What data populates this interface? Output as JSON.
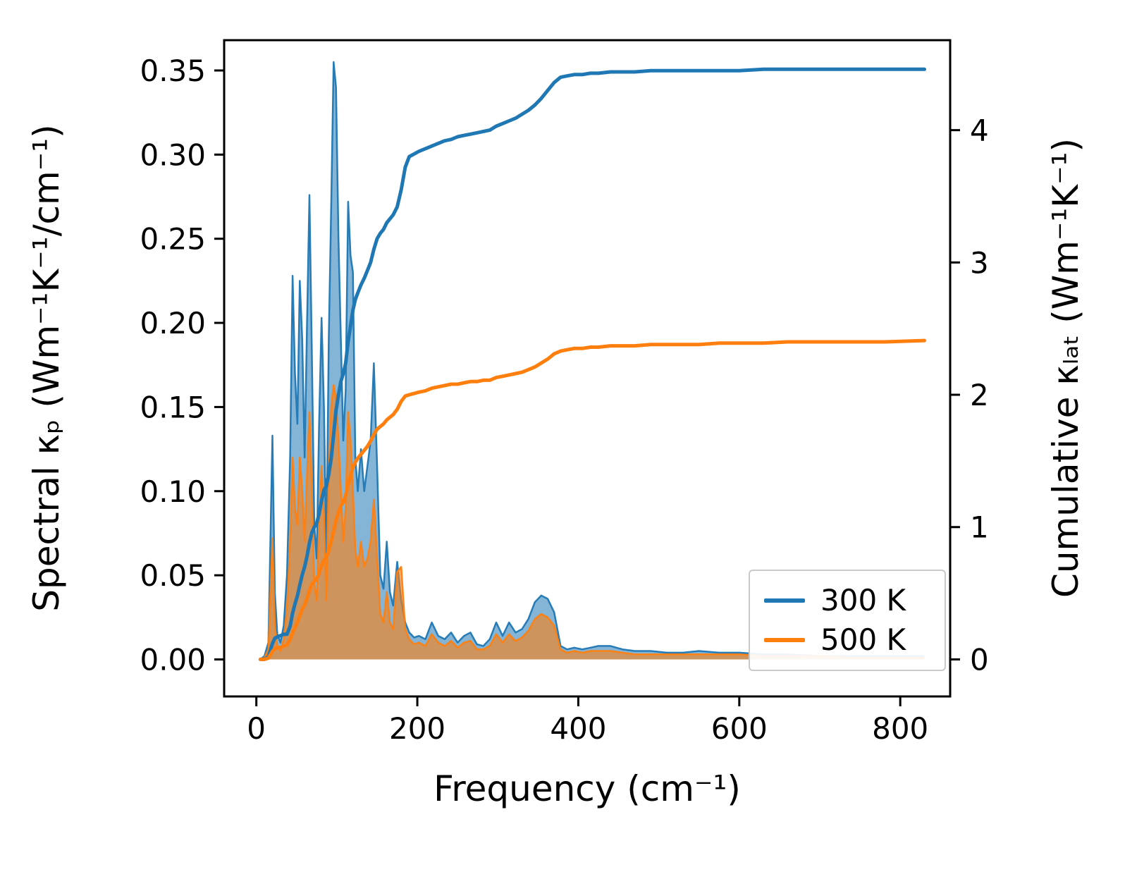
{
  "chart_data": {
    "type": "area+line",
    "title": "",
    "xlabel": "Frequency (cm⁻¹)",
    "ylabel_left": "Spectral κₚ (Wm⁻¹K⁻¹/cm⁻¹)",
    "ylabel_right": "Cumulative κₗₐₜ (Wm⁻¹K⁻¹)",
    "xlim": [
      -40,
      862
    ],
    "ylim_left": [
      -0.022,
      0.368
    ],
    "ylim_right": [
      -0.28,
      4.68
    ],
    "grid": false,
    "xticks": {
      "values": [
        0,
        200,
        400,
        600,
        800
      ],
      "labels": [
        "0",
        "200",
        "400",
        "600",
        "800"
      ]
    },
    "yticks_left": {
      "values": [
        0.0,
        0.05,
        0.1,
        0.15,
        0.2,
        0.25,
        0.3,
        0.35
      ],
      "labels": [
        "0.00",
        "0.05",
        "0.10",
        "0.15",
        "0.20",
        "0.25",
        "0.30",
        "0.35"
      ]
    },
    "yticks_right": {
      "values": [
        0,
        1,
        2,
        3,
        4
      ],
      "labels": [
        "0",
        "1",
        "2",
        "3",
        "4"
      ]
    },
    "x": [
      5,
      10,
      15,
      20,
      23,
      26,
      30,
      34,
      38,
      42,
      45,
      48,
      51,
      54,
      57,
      60,
      63,
      66,
      69,
      72,
      75,
      78,
      81,
      84,
      87,
      90,
      93,
      96,
      99,
      102,
      105,
      108,
      111,
      114,
      117,
      120,
      123,
      126,
      130,
      134,
      138,
      142,
      146,
      150,
      154,
      158,
      162,
      166,
      170,
      175,
      180,
      185,
      190,
      196,
      202,
      210,
      218,
      226,
      234,
      242,
      250,
      258,
      266,
      274,
      282,
      290,
      298,
      306,
      314,
      322,
      330,
      338,
      346,
      354,
      362,
      370,
      378,
      386,
      395,
      405,
      415,
      425,
      440,
      455,
      470,
      490,
      510,
      530,
      550,
      575,
      600,
      630,
      660,
      700,
      740,
      780,
      830
    ],
    "series": [
      {
        "name": "spectral-300K",
        "kind": "area",
        "axis": "left",
        "color": "#1f77b4",
        "fill_alpha": 0.55,
        "values": [
          0.0,
          0.002,
          0.01,
          0.133,
          0.04,
          0.015,
          0.01,
          0.02,
          0.05,
          0.12,
          0.228,
          0.17,
          0.14,
          0.225,
          0.19,
          0.12,
          0.2,
          0.276,
          0.18,
          0.08,
          0.06,
          0.14,
          0.203,
          0.15,
          0.06,
          0.19,
          0.27,
          0.355,
          0.34,
          0.25,
          0.19,
          0.13,
          0.16,
          0.272,
          0.24,
          0.23,
          0.12,
          0.1,
          0.125,
          0.1,
          0.115,
          0.13,
          0.176,
          0.115,
          0.05,
          0.042,
          0.07,
          0.04,
          0.032,
          0.058,
          0.035,
          0.022,
          0.016,
          0.013,
          0.014,
          0.012,
          0.022,
          0.014,
          0.012,
          0.016,
          0.01,
          0.014,
          0.016,
          0.009,
          0.008,
          0.012,
          0.022,
          0.014,
          0.022,
          0.016,
          0.018,
          0.024,
          0.034,
          0.038,
          0.036,
          0.028,
          0.008,
          0.006,
          0.007,
          0.006,
          0.007,
          0.008,
          0.008,
          0.006,
          0.005,
          0.005,
          0.004,
          0.004,
          0.005,
          0.004,
          0.004,
          0.003,
          0.003,
          0.002,
          0.002,
          0.002,
          0.002
        ]
      },
      {
        "name": "spectral-500K",
        "kind": "area",
        "axis": "left",
        "color": "#ff7f0e",
        "fill_alpha": 0.6,
        "values": [
          0.0,
          0.001,
          0.006,
          0.072,
          0.02,
          0.008,
          0.005,
          0.012,
          0.03,
          0.07,
          0.12,
          0.09,
          0.08,
          0.12,
          0.1,
          0.07,
          0.11,
          0.147,
          0.1,
          0.045,
          0.035,
          0.08,
          0.115,
          0.085,
          0.035,
          0.11,
          0.15,
          0.163,
          0.155,
          0.13,
          0.1,
          0.07,
          0.09,
          0.147,
          0.13,
          0.1,
          0.065,
          0.055,
          0.07,
          0.055,
          0.06,
          0.07,
          0.095,
          0.06,
          0.027,
          0.022,
          0.04,
          0.022,
          0.018,
          0.052,
          0.055,
          0.018,
          0.012,
          0.009,
          0.01,
          0.008,
          0.015,
          0.01,
          0.008,
          0.011,
          0.007,
          0.01,
          0.011,
          0.006,
          0.006,
          0.008,
          0.015,
          0.01,
          0.015,
          0.011,
          0.013,
          0.017,
          0.024,
          0.027,
          0.025,
          0.02,
          0.006,
          0.004,
          0.005,
          0.004,
          0.005,
          0.005,
          0.005,
          0.004,
          0.003,
          0.003,
          0.003,
          0.003,
          0.003,
          0.003,
          0.003,
          0.002,
          0.002,
          0.002,
          0.001,
          0.001,
          0.001
        ]
      },
      {
        "name": "cumulative-300K",
        "kind": "line",
        "axis": "right",
        "color": "#1f77b4",
        "values": [
          0.0,
          0.0,
          0.02,
          0.12,
          0.16,
          0.17,
          0.18,
          0.19,
          0.19,
          0.25,
          0.35,
          0.42,
          0.48,
          0.56,
          0.64,
          0.7,
          0.78,
          0.88,
          0.96,
          1.0,
          1.03,
          1.1,
          1.2,
          1.28,
          1.31,
          1.4,
          1.52,
          1.7,
          1.88,
          2.0,
          2.1,
          2.16,
          2.24,
          2.4,
          2.52,
          2.64,
          2.72,
          2.77,
          2.83,
          2.88,
          2.94,
          3.0,
          3.1,
          3.18,
          3.22,
          3.25,
          3.3,
          3.33,
          3.36,
          3.42,
          3.55,
          3.72,
          3.8,
          3.82,
          3.84,
          3.86,
          3.88,
          3.9,
          3.92,
          3.93,
          3.95,
          3.96,
          3.97,
          3.98,
          3.99,
          4.0,
          4.03,
          4.05,
          4.07,
          4.09,
          4.12,
          4.15,
          4.19,
          4.24,
          4.3,
          4.36,
          4.4,
          4.41,
          4.42,
          4.42,
          4.43,
          4.43,
          4.44,
          4.44,
          4.44,
          4.45,
          4.45,
          4.45,
          4.45,
          4.45,
          4.45,
          4.46,
          4.46,
          4.46,
          4.46,
          4.46,
          4.46
        ]
      },
      {
        "name": "cumulative-500K",
        "kind": "line",
        "axis": "right",
        "color": "#ff7f0e",
        "values": [
          0.0,
          0.0,
          0.01,
          0.06,
          0.08,
          0.09,
          0.09,
          0.1,
          0.11,
          0.15,
          0.2,
          0.24,
          0.28,
          0.33,
          0.38,
          0.41,
          0.46,
          0.52,
          0.57,
          0.59,
          0.61,
          0.65,
          0.71,
          0.75,
          0.77,
          0.82,
          0.89,
          0.97,
          1.05,
          1.11,
          1.16,
          1.19,
          1.24,
          1.32,
          1.39,
          1.45,
          1.49,
          1.52,
          1.55,
          1.58,
          1.61,
          1.65,
          1.7,
          1.74,
          1.76,
          1.78,
          1.81,
          1.83,
          1.85,
          1.89,
          1.95,
          1.99,
          2.0,
          2.01,
          2.02,
          2.03,
          2.05,
          2.06,
          2.07,
          2.08,
          2.08,
          2.09,
          2.1,
          2.1,
          2.11,
          2.11,
          2.13,
          2.14,
          2.15,
          2.16,
          2.17,
          2.19,
          2.21,
          2.24,
          2.27,
          2.31,
          2.33,
          2.34,
          2.35,
          2.35,
          2.36,
          2.36,
          2.37,
          2.37,
          2.37,
          2.38,
          2.38,
          2.38,
          2.38,
          2.39,
          2.39,
          2.39,
          2.4,
          2.4,
          2.4,
          2.4,
          2.41
        ]
      }
    ],
    "legend": {
      "position": "lower right",
      "entries": [
        {
          "label": "300 K",
          "color": "#1f77b4"
        },
        {
          "label": "500 K",
          "color": "#ff7f0e"
        }
      ]
    }
  }
}
